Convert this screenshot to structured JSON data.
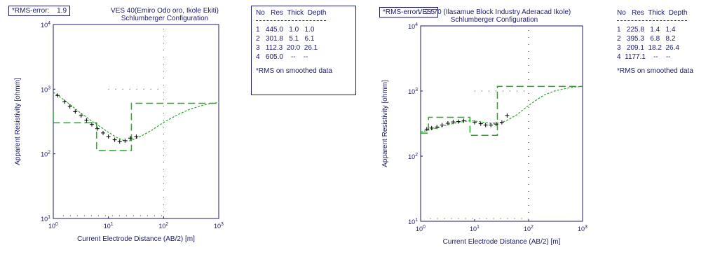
{
  "chart_data": [
    {
      "type": "line",
      "rms_label": "*RMS-error:",
      "rms_value": "1.9",
      "title": "VES 40(Emiro Odo oro, Ikole Ekiti)",
      "subtitle": "Schlumberger Configuration",
      "xlabel": "Current Electrode Distance (AB/2) [m]",
      "ylabel": "Apparent Resistivity [ohmm]",
      "xlim": [
        1,
        1000
      ],
      "ylim": [
        10,
        10000
      ],
      "x_scale": "log",
      "y_scale": "log",
      "x_ticks": [
        "10^0",
        "10^1",
        "10^2",
        "10^3"
      ],
      "y_ticks": [
        "10^1",
        "10^2",
        "10^3",
        "10^4"
      ],
      "measured": {
        "x": [
          1.2,
          1.6,
          2.0,
          2.5,
          3.2,
          4.0,
          5.0,
          6.3,
          8.0,
          10,
          13,
          16,
          20,
          25,
          32
        ],
        "y": [
          800,
          640,
          540,
          450,
          390,
          330,
          285,
          245,
          210,
          185,
          165,
          155,
          160,
          175,
          185
        ]
      },
      "calculated": {
        "x": [
          1,
          1.5,
          2,
          3,
          4,
          5,
          7,
          10,
          14,
          20,
          25,
          30,
          40,
          60,
          80,
          100,
          150,
          200,
          300,
          500,
          700,
          1000
        ],
        "y": [
          900,
          700,
          580,
          440,
          370,
          320,
          265,
          215,
          180,
          158,
          160,
          170,
          190,
          230,
          270,
          305,
          370,
          420,
          490,
          560,
          600,
          620
        ]
      },
      "model_steps": {
        "resistivities": [
          445.0,
          301.8,
          112.3,
          605.0
        ],
        "depths": [
          1.0,
          6.1,
          26.1
        ]
      },
      "table": {
        "header": [
          "No",
          "Res",
          "Thick",
          "Depth"
        ],
        "rows": [
          [
            "1",
            "445.0",
            "1.0",
            "1.0"
          ],
          [
            "2",
            "301.8",
            "5.1",
            "6.1"
          ],
          [
            "3",
            "112.3",
            "20.0",
            "26.1"
          ],
          [
            "4",
            "605.0",
            "--",
            "--"
          ]
        ],
        "note": "*RMS on smoothed data"
      },
      "colors": {
        "fit": "#22aa22",
        "data": "#000000",
        "axis": "#1a1a6e"
      },
      "grid": "dotted at 10^2 m"
    },
    {
      "type": "line",
      "rms_label": "*RMS-error:",
      "rms_value": "2.5",
      "title": "VES 70 (Ilasamue Block Industry Aderacad Ikole)",
      "subtitle": "Schlumberger Configuration",
      "xlabel": "Current Electrode Distance (AB/2) [m]",
      "ylabel": "Apparent Resistivity [ohmm]",
      "xlim": [
        1,
        1000
      ],
      "ylim": [
        10,
        10000
      ],
      "x_scale": "log",
      "y_scale": "log",
      "x_ticks": [
        "10^0",
        "10^1",
        "10^2",
        "10^3"
      ],
      "y_ticks": [
        "10^1",
        "10^2",
        "10^3",
        "10^4"
      ],
      "measured": {
        "x": [
          1.3,
          1.6,
          2.0,
          2.5,
          3.2,
          4.0,
          5.0,
          6.3,
          10,
          13,
          16,
          20,
          25,
          32,
          40
        ],
        "y": [
          260,
          270,
          280,
          300,
          320,
          335,
          340,
          350,
          330,
          315,
          300,
          300,
          310,
          330,
          420
        ]
      },
      "calculated": {
        "x": [
          1,
          2,
          3,
          5,
          8,
          10,
          15,
          20,
          30,
          40,
          60,
          80,
          100,
          150,
          200,
          300,
          500,
          700,
          1000
        ],
        "y": [
          235,
          270,
          300,
          330,
          350,
          345,
          330,
          320,
          325,
          355,
          430,
          520,
          600,
          760,
          880,
          1000,
          1100,
          1150,
          1180
        ]
      },
      "model_steps": {
        "resistivities": [
          225.8,
          395.3,
          209.1,
          1177.1
        ],
        "depths": [
          1.4,
          8.2,
          26.4
        ]
      },
      "table": {
        "header": [
          "No",
          "Res",
          "Thick",
          "Depth"
        ],
        "rows": [
          [
            "1",
            "225.8",
            "1.4",
            "1.4"
          ],
          [
            "2",
            "395.3",
            "6.8",
            "8.2"
          ],
          [
            "3",
            "209.1",
            "18.2",
            "26.4"
          ],
          [
            "4",
            "1177.1",
            "--",
            "--"
          ]
        ],
        "note": "*RMS on smoothed data"
      },
      "colors": {
        "fit": "#22aa22",
        "data": "#000000",
        "axis": "#1a1a6e"
      },
      "grid": "dotted at 10^2 m"
    }
  ]
}
